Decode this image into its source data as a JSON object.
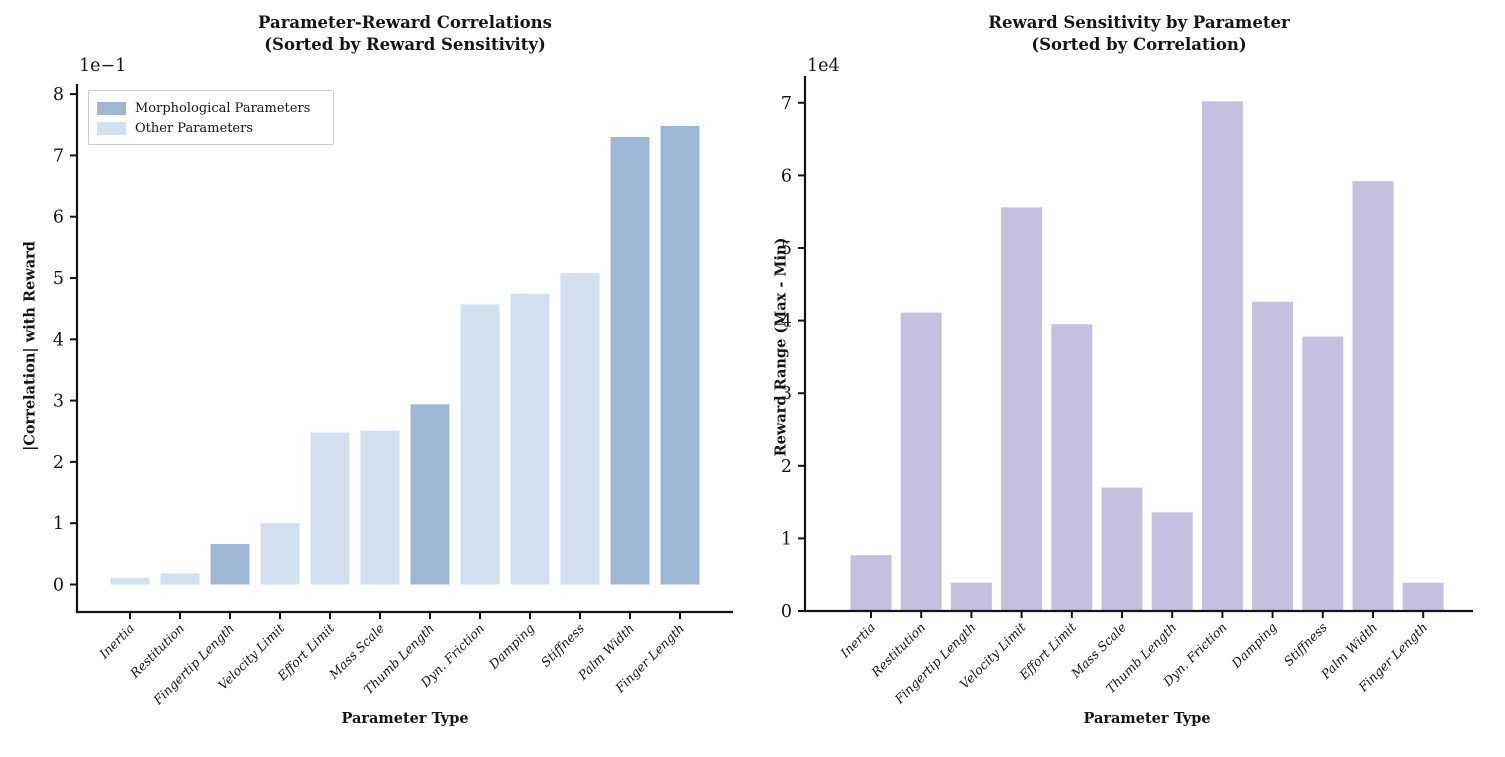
{
  "figure": {
    "background": "#ffffff",
    "text_color": "#151515"
  },
  "chart_data": [
    {
      "type": "bar",
      "title_line1": "Parameter-Reward Correlations",
      "title_line2": "(Sorted by Reward Sensitivity)",
      "xlabel": "Parameter Type",
      "ylabel": "|Correlation| with Reward",
      "y_offset_label": "1e−1",
      "value_units": "axis units of 1e-1 (multiply values by 0.1 for absolute correlation)",
      "categories": [
        "Inertia",
        "Restitution",
        "Fingertip Length",
        "Velocity Limit",
        "Effort Limit",
        "Mass Scale",
        "Thumb Length",
        "Dyn. Friction",
        "Damping",
        "Stiffness",
        "Palm Width",
        "Finger Length"
      ],
      "values": [
        0.11,
        0.18,
        0.66,
        1.0,
        2.48,
        2.51,
        2.94,
        4.57,
        4.74,
        5.08,
        7.3,
        7.48
      ],
      "groups": [
        "other",
        "other",
        "morphological",
        "other",
        "other",
        "other",
        "morphological",
        "other",
        "other",
        "other",
        "morphological",
        "morphological"
      ],
      "colors": {
        "morphological": "#9db8d6",
        "other": "#d3e0ef"
      },
      "yticks": [
        0,
        1,
        2,
        3,
        4,
        5,
        6,
        7,
        8
      ],
      "ylim": [
        -0.45,
        8.17
      ],
      "grid": false,
      "legend": {
        "position": "upper left",
        "entries": [
          {
            "label": "Morphological Parameters",
            "color": "#9db8d6"
          },
          {
            "label": "Other Parameters",
            "color": "#d3e0ef"
          }
        ]
      }
    },
    {
      "type": "bar",
      "title_line1": "Reward Sensitivity by Parameter",
      "title_line2": "(Sorted by Correlation)",
      "xlabel": "Parameter Type",
      "ylabel": "Reward Range (Max - Min)",
      "y_offset_label": "1e4",
      "value_units": "axis units of 1e4 (multiply values by 10000 for absolute reward range)",
      "categories": [
        "Inertia",
        "Restitution",
        "Fingertip Length",
        "Velocity Limit",
        "Effort Limit",
        "Mass Scale",
        "Thumb Length",
        "Dyn. Friction",
        "Damping",
        "Stiffness",
        "Palm Width",
        "Finger Length"
      ],
      "values": [
        0.77,
        4.11,
        0.39,
        5.56,
        3.95,
        1.7,
        1.36,
        7.02,
        4.26,
        3.78,
        5.92,
        0.39
      ],
      "groups": null,
      "bar_color": "#c6c0e0",
      "yticks": [
        0,
        1,
        2,
        3,
        4,
        5,
        6,
        7
      ],
      "ylim": [
        0,
        7.37
      ],
      "grid": false,
      "legend": null
    }
  ]
}
